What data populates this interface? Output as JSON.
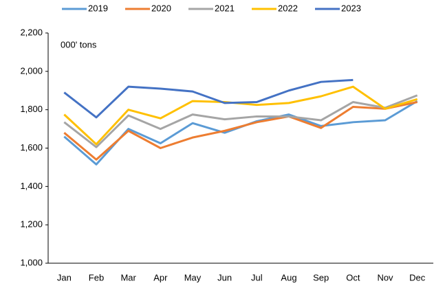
{
  "chart_data": {
    "type": "line",
    "annotation": "000' tons",
    "categories": [
      "Jan",
      "Feb",
      "Mar",
      "Apr",
      "May",
      "Jun",
      "Jul",
      "Aug",
      "Sep",
      "Oct",
      "Nov",
      "Dec"
    ],
    "series": [
      {
        "name": "2019",
        "color": "#5b9bd5",
        "values": [
          1660,
          1515,
          1700,
          1625,
          1730,
          1680,
          1740,
          1775,
          1715,
          1735,
          1745,
          1845
        ]
      },
      {
        "name": "2020",
        "color": "#ed7d31",
        "values": [
          1680,
          1540,
          1690,
          1600,
          1655,
          1690,
          1735,
          1765,
          1705,
          1815,
          1805,
          1840
        ]
      },
      {
        "name": "2021",
        "color": "#a5a5a5",
        "values": [
          1735,
          1605,
          1770,
          1700,
          1775,
          1750,
          1765,
          1765,
          1745,
          1840,
          1810,
          1875
        ]
      },
      {
        "name": "2022",
        "color": "#ffc000",
        "values": [
          1775,
          1620,
          1800,
          1755,
          1845,
          1840,
          1825,
          1835,
          1870,
          1920,
          1805,
          1855
        ]
      },
      {
        "name": "2023",
        "color": "#4472c4",
        "values": [
          1890,
          1760,
          1920,
          1910,
          1895,
          1835,
          1840,
          1900,
          1945,
          1955,
          null,
          null
        ]
      }
    ],
    "ylim": [
      1000,
      2200
    ],
    "yticks": [
      {
        "value": 1000,
        "label": "1,000"
      },
      {
        "value": 1200,
        "label": "1,200"
      },
      {
        "value": 1400,
        "label": "1,400"
      },
      {
        "value": 1600,
        "label": "1,600"
      },
      {
        "value": 1800,
        "label": "1,800"
      },
      {
        "value": 2000,
        "label": "2,000"
      },
      {
        "value": 2200,
        "label": "2,200"
      }
    ],
    "grid": false,
    "legend": "top"
  }
}
